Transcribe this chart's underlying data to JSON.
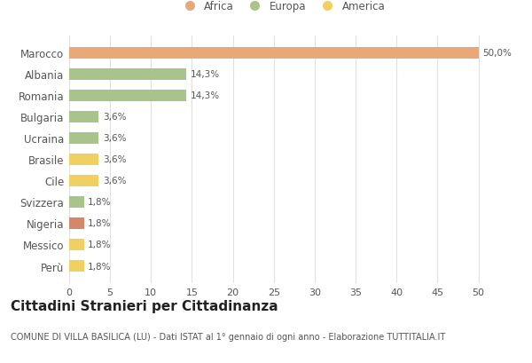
{
  "categories": [
    "Perù",
    "Messico",
    "Nigeria",
    "Svizzera",
    "Cile",
    "Brasile",
    "Ucraina",
    "Bulgaria",
    "Romania",
    "Albania",
    "Marocco"
  ],
  "values": [
    1.8,
    1.8,
    1.8,
    1.8,
    3.6,
    3.6,
    3.6,
    3.6,
    14.3,
    14.3,
    50.0
  ],
  "colors": [
    "#f0d060",
    "#f0d060",
    "#d4876a",
    "#a8c48a",
    "#f0d060",
    "#f0d060",
    "#a8c48a",
    "#a8c48a",
    "#a8c48a",
    "#a8c48a",
    "#e8a878"
  ],
  "labels": [
    "1,8%",
    "1,8%",
    "1,8%",
    "1,8%",
    "3,6%",
    "3,6%",
    "3,6%",
    "3,6%",
    "14,3%",
    "14,3%",
    "50,0%"
  ],
  "xlim": [
    0,
    52
  ],
  "xticks": [
    0,
    5,
    10,
    15,
    20,
    25,
    30,
    35,
    40,
    45,
    50
  ],
  "legend": [
    {
      "label": "Africa",
      "color": "#e8a878"
    },
    {
      "label": "Europa",
      "color": "#a8c48a"
    },
    {
      "label": "America",
      "color": "#f0d060"
    }
  ],
  "title": "Cittadini Stranieri per Cittadinanza",
  "subtitle": "COMUNE DI VILLA BASILICA (LU) - Dati ISTAT al 1° gennaio di ogni anno - Elaborazione TUTTITALIA.IT",
  "background_color": "#ffffff",
  "grid_color": "#e0e0e0",
  "bar_height": 0.55,
  "label_fontsize": 7.5,
  "ytick_fontsize": 8.5,
  "xtick_fontsize": 8,
  "title_fontsize": 11,
  "subtitle_fontsize": 7,
  "legend_fontsize": 8.5
}
